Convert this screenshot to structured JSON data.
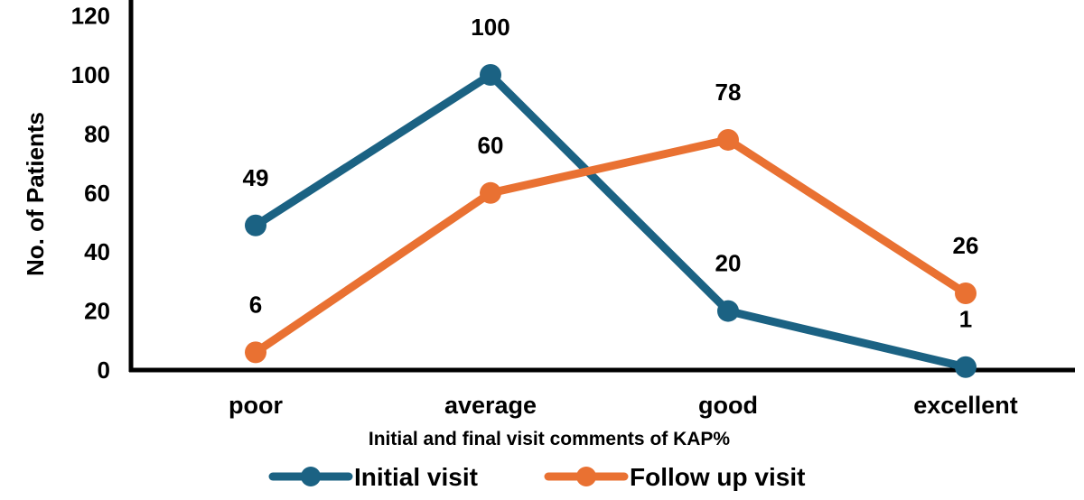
{
  "chart_data": {
    "type": "line",
    "categories": [
      "poor",
      "average",
      "good",
      "excellent"
    ],
    "series": [
      {
        "name": "Initial visit",
        "values": [
          49,
          100,
          20,
          1
        ],
        "color": "#1b6283"
      },
      {
        "name": "Follow up visit",
        "values": [
          6,
          60,
          78,
          26
        ],
        "color": "#e97132"
      }
    ],
    "xlabel": "Initial and final visit comments of KAP%",
    "ylabel": "No. of Patients",
    "ylim": [
      0,
      120
    ],
    "yticks": [
      0,
      20,
      40,
      60,
      80,
      100,
      120
    ],
    "grid": false,
    "legend": "bottom"
  }
}
